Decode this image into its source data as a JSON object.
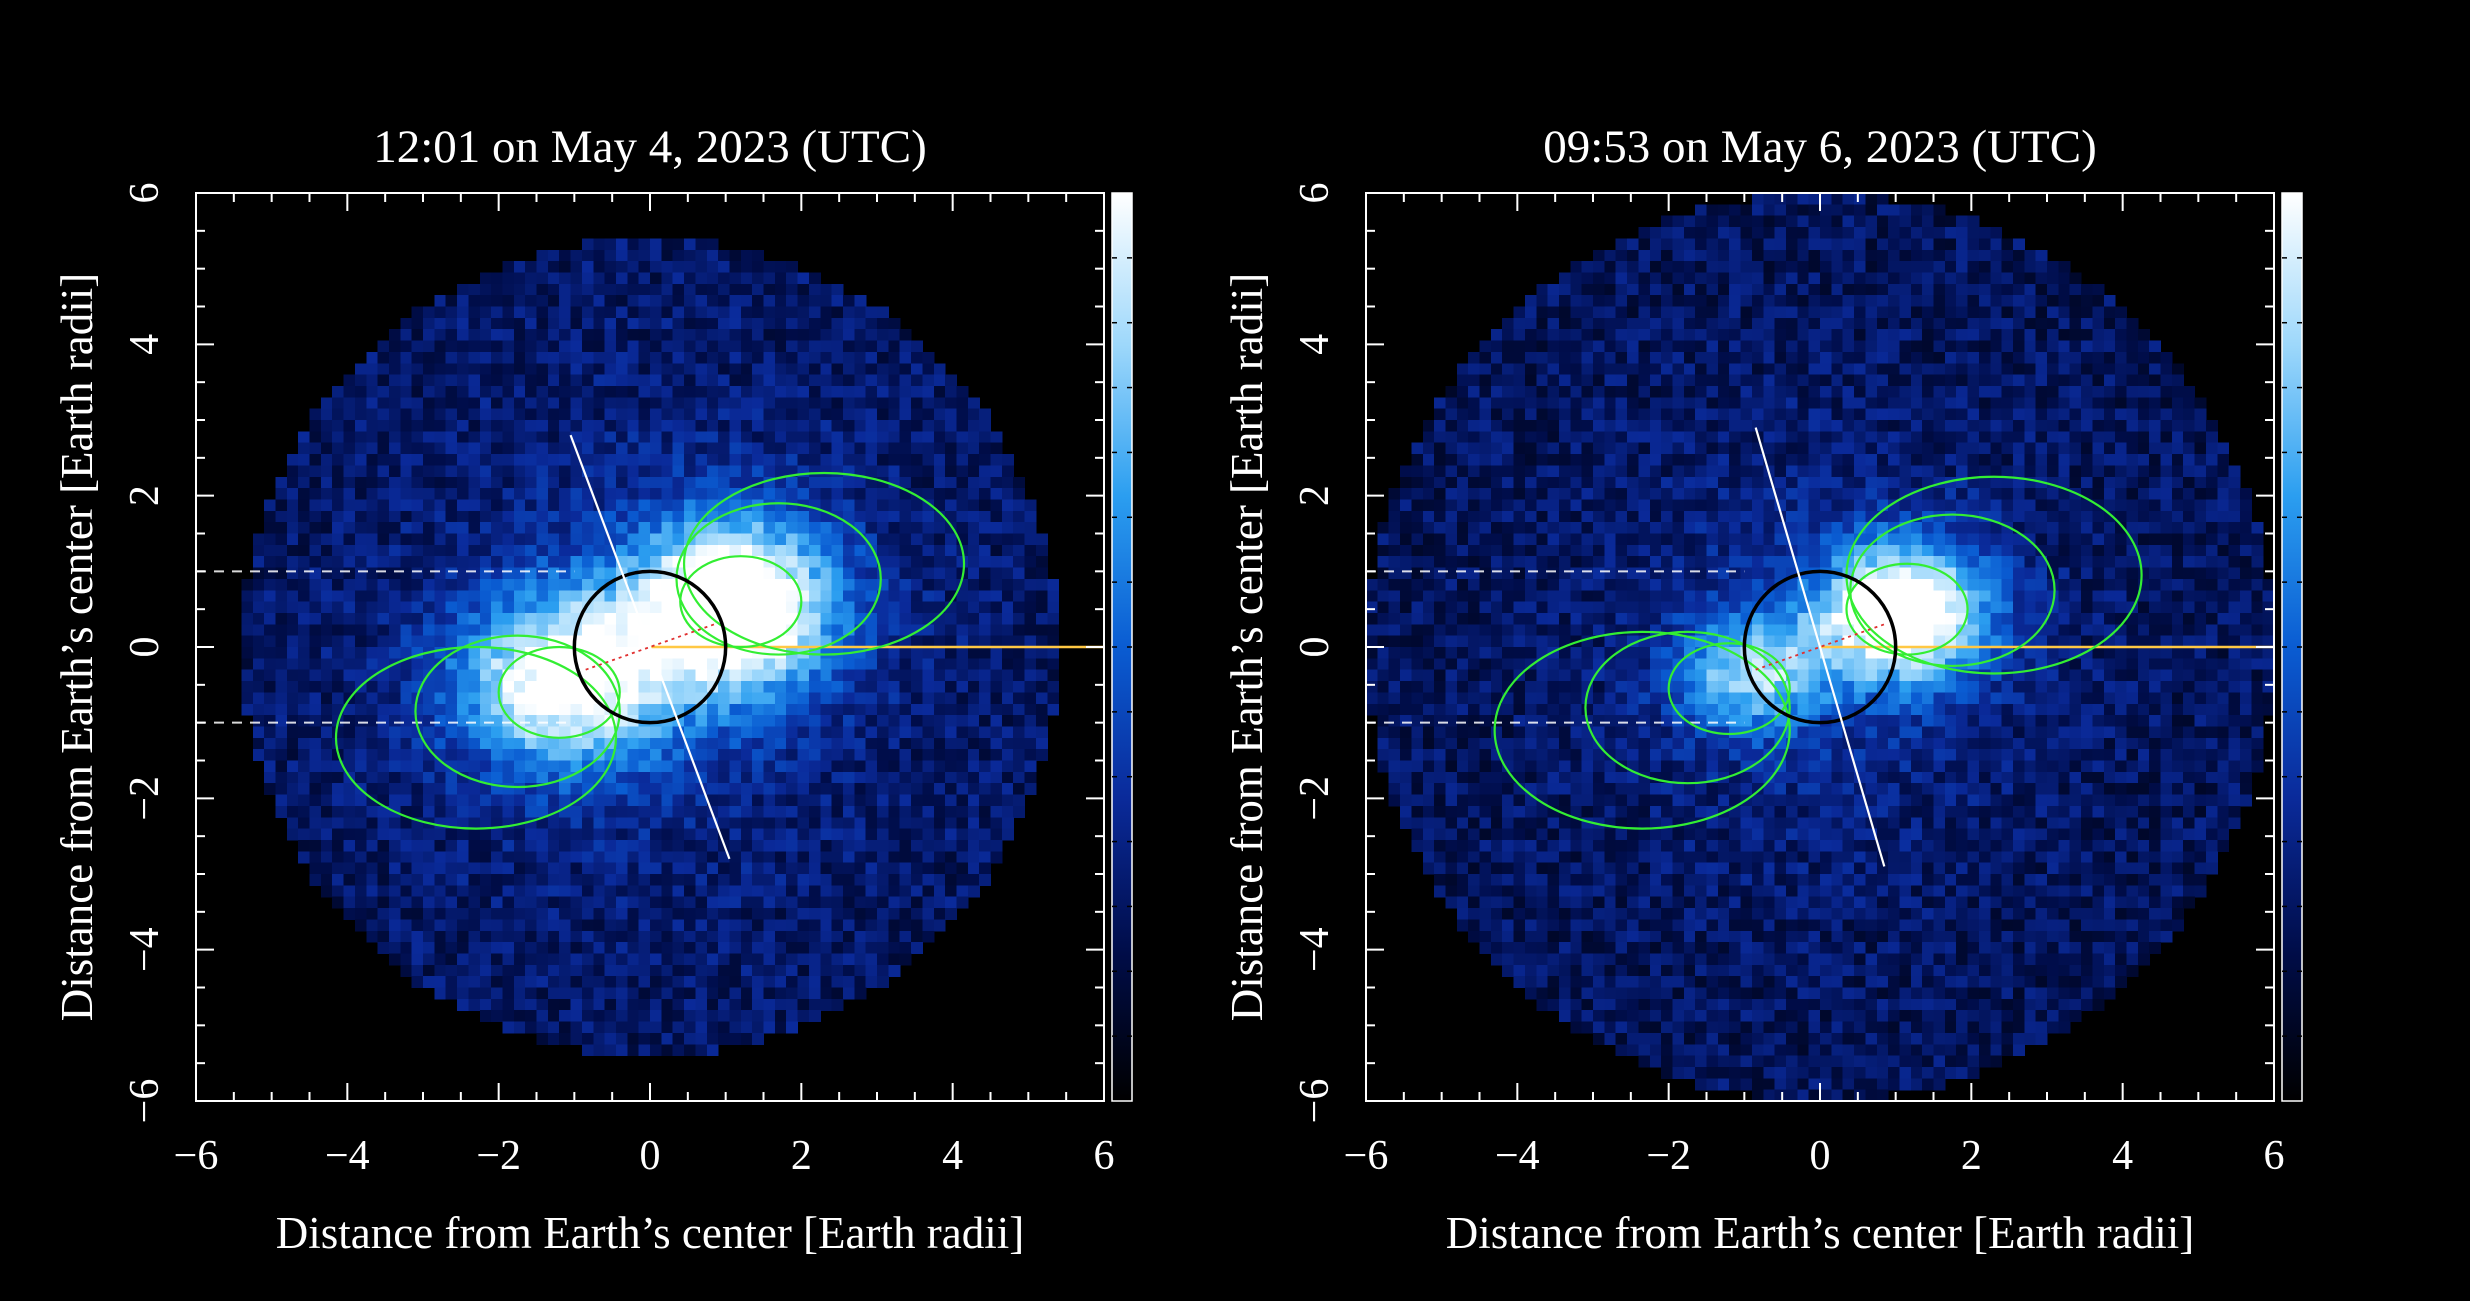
{
  "chart_data": [
    {
      "type": "heatmap",
      "title": "12:01 on May 4, 2023 (UTC)",
      "xlabel": "Distance from Earth’s center [Earth radii]",
      "ylabel": "Distance from Earth’s center [Earth radii]",
      "xlim": [
        -6,
        6
      ],
      "ylim": [
        -6,
        6
      ],
      "xticks": [
        -6,
        -4,
        -2,
        0,
        2,
        4,
        6
      ],
      "yticks": [
        -6,
        -4,
        -2,
        0,
        2,
        4,
        6
      ],
      "xtick_labels": [
        "−6",
        "−4",
        "−2",
        "0",
        "2",
        "4",
        "6"
      ],
      "ytick_labels": [
        "−6",
        "−4",
        "−2",
        "0",
        "2",
        "4",
        "6"
      ],
      "field_of_view_radius": 5.4,
      "emission": {
        "lobes": [
          {
            "x": 1.1,
            "y": 0.55,
            "sx": 0.95,
            "sy": 0.8,
            "amp": 1.0
          },
          {
            "x": -1.15,
            "y": -0.45,
            "sx": 1.0,
            "sy": 0.8,
            "amp": 0.8
          }
        ],
        "background": 0.22
      },
      "earth_radius": 1,
      "spin_axis": [
        [
          -1.05,
          2.8
        ],
        [
          1.05,
          -2.8
        ]
      ],
      "dashed_lines_y": [
        1,
        -1
      ],
      "dashed_lines_x_end": -1,
      "sun_line": [
        [
          0,
          0
        ],
        [
          6,
          0
        ]
      ],
      "red_line": [
        [
          0,
          0
        ],
        [
          -0.85,
          -0.3
        ],
        [
          0.85,
          0.3
        ]
      ],
      "field_lines": [
        {
          "center": [
            1.2,
            0.6
          ],
          "rx": 0.8,
          "ry": 0.6
        },
        {
          "center": [
            1.7,
            0.9
          ],
          "rx": 1.35,
          "ry": 1.0
        },
        {
          "center": [
            2.3,
            1.1
          ],
          "rx": 1.85,
          "ry": 1.2
        },
        {
          "center": [
            -1.2,
            -0.6
          ],
          "rx": 0.8,
          "ry": 0.6
        },
        {
          "center": [
            -1.75,
            -0.85
          ],
          "rx": 1.35,
          "ry": 1.0
        },
        {
          "center": [
            -2.3,
            -1.2
          ],
          "rx": 1.85,
          "ry": 1.2
        }
      ]
    },
    {
      "type": "heatmap",
      "title": "09:53 on May 6, 2023 (UTC)",
      "xlabel": "Distance from Earth’s center [Earth radii]",
      "ylabel": "Distance from Earth’s center [Earth radii]",
      "xlim": [
        -6,
        6
      ],
      "ylim": [
        -6,
        6
      ],
      "xticks": [
        -6,
        -4,
        -2,
        0,
        2,
        4,
        6
      ],
      "yticks": [
        -6,
        -4,
        -2,
        0,
        2,
        4,
        6
      ],
      "xtick_labels": [
        "−6",
        "−4",
        "−2",
        "0",
        "2",
        "4",
        "6"
      ],
      "ytick_labels": [
        "−6",
        "−4",
        "−2",
        "0",
        "2",
        "4",
        "6"
      ],
      "field_of_view_radius": 6.0,
      "emission": {
        "lobes": [
          {
            "x": 1.1,
            "y": 0.45,
            "sx": 0.8,
            "sy": 0.65,
            "amp": 0.95
          },
          {
            "x": -0.9,
            "y": -0.35,
            "sx": 0.7,
            "sy": 0.55,
            "amp": 0.55
          }
        ],
        "background": 0.2
      },
      "earth_radius": 1,
      "spin_axis": [
        [
          -0.85,
          2.9
        ],
        [
          0.85,
          -2.9
        ]
      ],
      "dashed_lines_y": [
        1,
        -1
      ],
      "dashed_lines_x_end": -1,
      "sun_line": [
        [
          0,
          0
        ],
        [
          6,
          0
        ]
      ],
      "red_line": [
        [
          0,
          0
        ],
        [
          -0.85,
          -0.3
        ],
        [
          0.85,
          0.3
        ]
      ],
      "field_lines": [
        {
          "center": [
            1.15,
            0.5
          ],
          "rx": 0.8,
          "ry": 0.6
        },
        {
          "center": [
            1.75,
            0.75
          ],
          "rx": 1.35,
          "ry": 1.0
        },
        {
          "center": [
            2.3,
            0.95
          ],
          "rx": 1.95,
          "ry": 1.3
        },
        {
          "center": [
            -1.2,
            -0.55
          ],
          "rx": 0.8,
          "ry": 0.6
        },
        {
          "center": [
            -1.75,
            -0.8
          ],
          "rx": 1.35,
          "ry": 1.0
        },
        {
          "center": [
            -2.35,
            -1.1
          ],
          "rx": 1.95,
          "ry": 1.3
        }
      ]
    }
  ],
  "colors": {
    "background": "#000000",
    "axis": "#ffffff",
    "field_line": "#33ee33",
    "earth_limb": "#000000",
    "sun_line": "#ffc844",
    "red_line": "#e03030",
    "colormap": [
      "#000000",
      "#000d4a",
      "#0a2a9a",
      "#0a5cd2",
      "#2b9ef0",
      "#9ed8fb",
      "#ffffff"
    ]
  }
}
